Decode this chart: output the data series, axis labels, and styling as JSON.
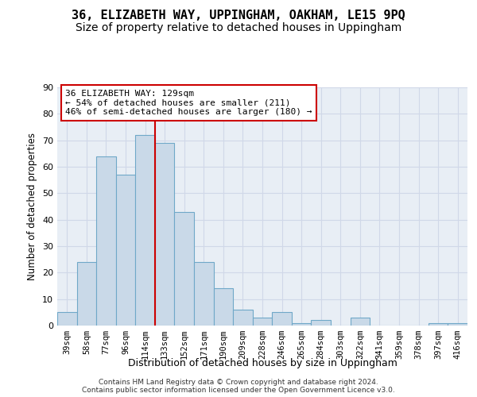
{
  "title": "36, ELIZABETH WAY, UPPINGHAM, OAKHAM, LE15 9PQ",
  "subtitle": "Size of property relative to detached houses in Uppingham",
  "xlabel": "Distribution of detached houses by size in Uppingham",
  "ylabel": "Number of detached properties",
  "bar_labels": [
    "39sqm",
    "58sqm",
    "77sqm",
    "96sqm",
    "114sqm",
    "133sqm",
    "152sqm",
    "171sqm",
    "190sqm",
    "209sqm",
    "228sqm",
    "246sqm",
    "265sqm",
    "284sqm",
    "303sqm",
    "322sqm",
    "341sqm",
    "359sqm",
    "378sqm",
    "397sqm",
    "416sqm"
  ],
  "bar_values": [
    5,
    24,
    64,
    57,
    72,
    69,
    43,
    24,
    14,
    6,
    3,
    5,
    1,
    2,
    0,
    3,
    0,
    0,
    0,
    1,
    1
  ],
  "bar_color": "#c9d9e8",
  "bar_edge_color": "#6fa8c8",
  "vline_x": 4.5,
  "vline_color": "#cc0000",
  "annotation_line1": "36 ELIZABETH WAY: 129sqm",
  "annotation_line2": "← 54% of detached houses are smaller (211)",
  "annotation_line3": "46% of semi-detached houses are larger (180) →",
  "annotation_box_color": "#ffffff",
  "annotation_box_edge_color": "#cc0000",
  "ylim": [
    0,
    90
  ],
  "yticks": [
    0,
    10,
    20,
    30,
    40,
    50,
    60,
    70,
    80,
    90
  ],
  "grid_color": "#d0d8e8",
  "background_color": "#e8eef5",
  "footer_line1": "Contains HM Land Registry data © Crown copyright and database right 2024.",
  "footer_line2": "Contains public sector information licensed under the Open Government Licence v3.0.",
  "title_fontsize": 11,
  "subtitle_fontsize": 10,
  "annotation_fontsize": 8
}
